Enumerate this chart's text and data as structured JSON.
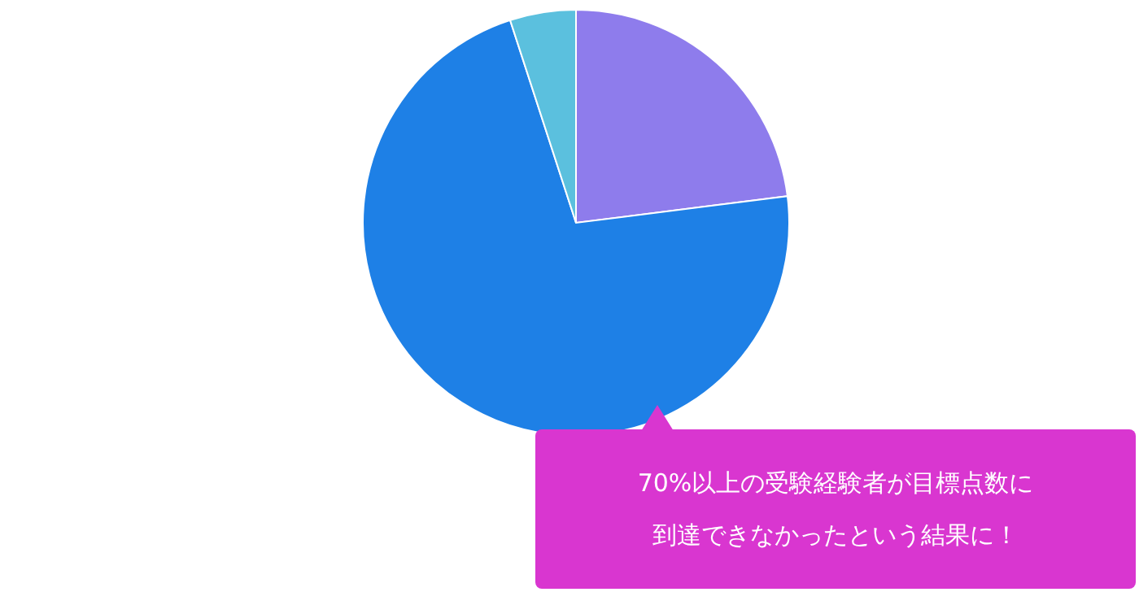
{
  "chart_data": {
    "type": "pie",
    "categories": [
      null,
      null,
      null
    ],
    "values": [
      23,
      72,
      5
    ],
    "colors": [
      "#8e7cec",
      "#1e80e6",
      "#5bc0de"
    ],
    "annotations": [
      "70%以上の受験経験者が目標点数に到達できなかったという結果に！"
    ]
  }
}
